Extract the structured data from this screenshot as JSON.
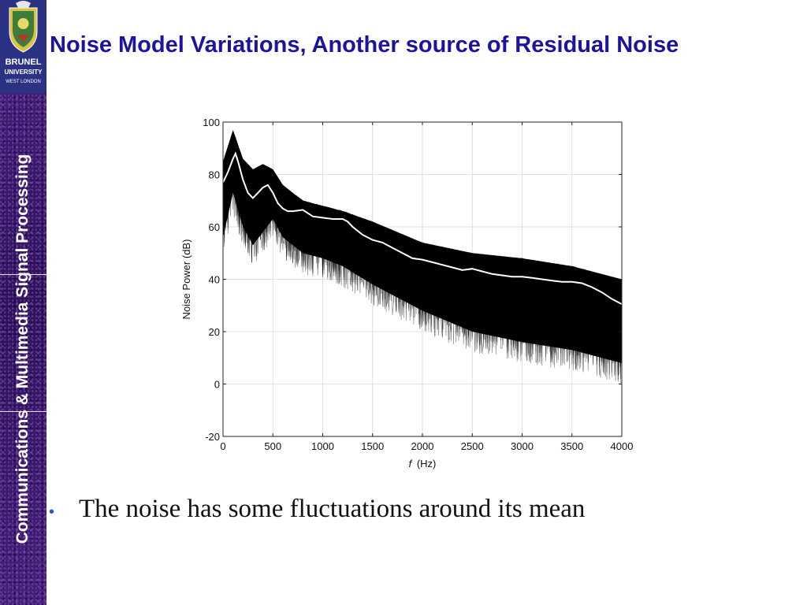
{
  "sidebar": {
    "logo_lines": [
      "BRUNEL",
      "UNIVERSITY",
      "WEST LONDON"
    ],
    "title": "Communications & Multimedia Signal Processing"
  },
  "slide": {
    "title": "Noise Model Variations, Another source of Residual Noise",
    "bullets": [
      "The noise has some fluctuations around its mean"
    ]
  },
  "colors": {
    "title": "#1a14a0",
    "sidebar": "#3a1a6a",
    "bullet": "#3355cc",
    "ensemble": "#000000",
    "mean": "#ffffff"
  },
  "chart_data": {
    "type": "line",
    "xlabel_italic": "f",
    "xlabel_unit": "(Hz)",
    "ylabel": "Noise Power (dB)",
    "xlim": [
      0,
      4000
    ],
    "ylim": [
      -20,
      100
    ],
    "xticks": [
      0,
      500,
      1000,
      1500,
      2000,
      2500,
      3000,
      3500,
      4000
    ],
    "yticks": [
      -20,
      0,
      20,
      40,
      60,
      80,
      100
    ],
    "grid": true,
    "series": [
      {
        "role": "mean noise spectrum (white)",
        "x": [
          0,
          50,
          100,
          125,
          150,
          200,
          250,
          300,
          350,
          400,
          450,
          500,
          550,
          600,
          650,
          700,
          800,
          900,
          1000,
          1100,
          1200,
          1250,
          1300,
          1400,
          1500,
          1600,
          1700,
          1800,
          1900,
          2000,
          2100,
          2200,
          2300,
          2400,
          2500,
          2600,
          2700,
          2800,
          2900,
          3000,
          3100,
          3200,
          3300,
          3400,
          3500,
          3600,
          3700,
          3800,
          3900,
          4000
        ],
        "y": [
          77,
          81,
          86,
          88,
          85,
          78,
          73,
          71,
          73,
          75,
          76,
          73,
          69,
          67,
          66,
          66,
          66.5,
          64,
          63.5,
          63,
          63,
          62,
          60,
          57,
          55,
          54,
          52,
          50,
          48,
          47.5,
          46.5,
          45.5,
          44.5,
          43.5,
          44,
          43,
          42,
          41.5,
          41,
          41,
          40.5,
          40,
          39.5,
          39,
          39,
          38.5,
          37,
          35,
          32.5,
          30.5
        ]
      },
      {
        "role": "ensemble envelope upper (dB)",
        "x": [
          0,
          100,
          200,
          300,
          400,
          500,
          600,
          800,
          1000,
          1200,
          1500,
          2000,
          2500,
          3000,
          3500,
          4000
        ],
        "y": [
          85,
          97,
          86,
          82,
          84,
          82,
          76,
          70,
          68,
          66,
          62,
          54,
          50,
          48,
          45,
          40
        ]
      },
      {
        "role": "ensemble envelope lower (dB)",
        "x": [
          0,
          100,
          200,
          300,
          400,
          500,
          600,
          800,
          1000,
          1200,
          1500,
          2000,
          2500,
          3000,
          3500,
          4000
        ],
        "y": [
          48,
          65,
          52,
          45,
          50,
          55,
          48,
          42,
          40,
          37,
          30,
          20,
          12,
          8,
          5,
          0
        ]
      }
    ]
  }
}
